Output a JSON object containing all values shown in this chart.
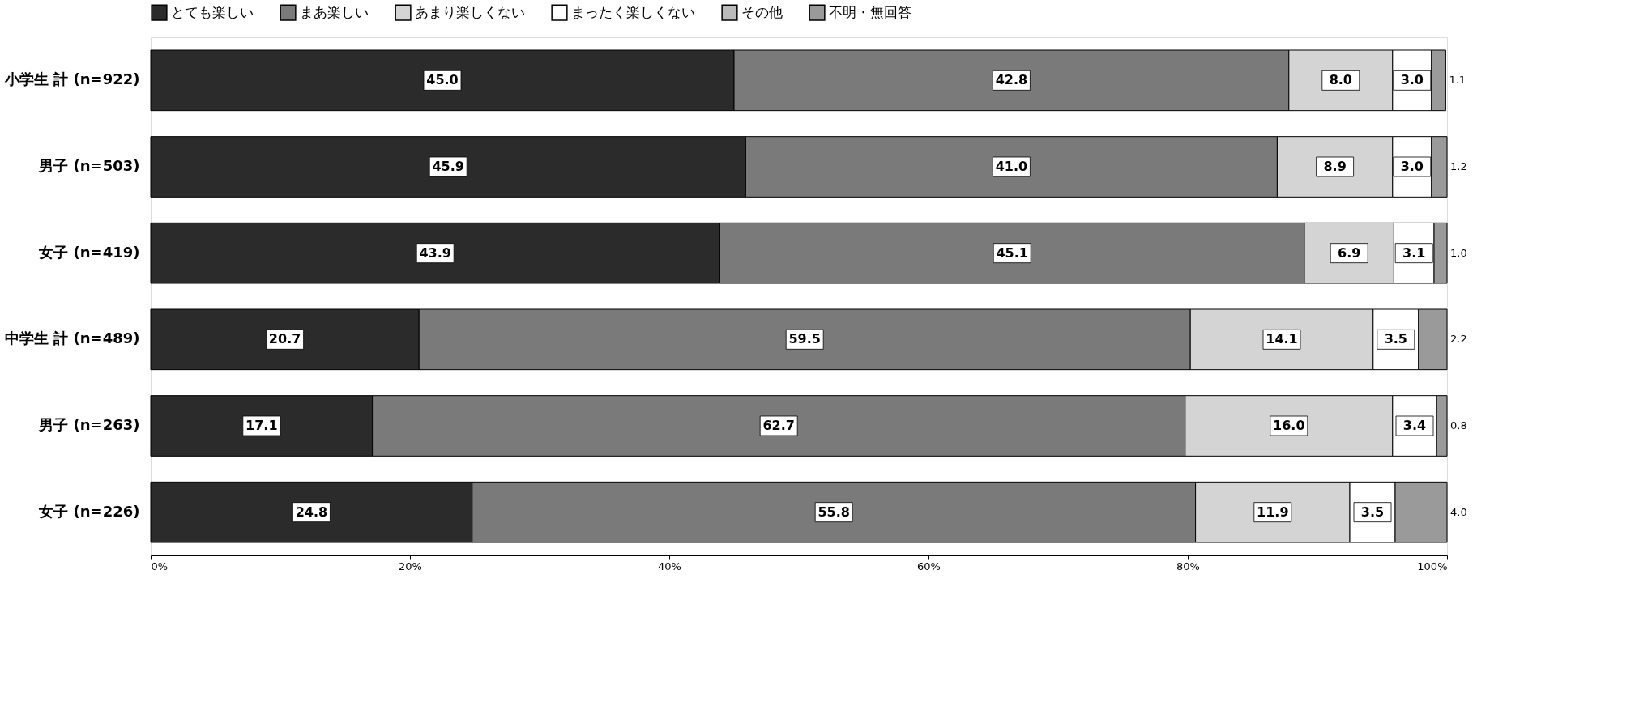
{
  "chart_data": {
    "type": "bar",
    "orientation": "horizontal",
    "stacked": true,
    "categories": [
      "小学生 計 (n=922)",
      "男子 (n=503)",
      "女子 (n=419)",
      "中学生 計 (n=489)",
      "男子 (n=263)",
      "女子 (n=226)"
    ],
    "series": [
      {
        "name": "とても楽しい",
        "color": "#2b2b2b",
        "values": [
          45.0,
          45.9,
          43.9,
          20.7,
          17.1,
          24.8
        ],
        "value_labels": [
          "45.0",
          "45.9",
          "43.9",
          "20.7",
          "17.1",
          "24.8"
        ]
      },
      {
        "name": "まあ楽しい",
        "color": "#7a7a7a",
        "values": [
          42.8,
          41.0,
          45.1,
          59.5,
          62.7,
          55.8
        ],
        "value_labels": [
          "42.8",
          "41.0",
          "45.1",
          "59.5",
          "62.7",
          "55.8"
        ]
      },
      {
        "name": "あまり楽しくない",
        "color": "#d4d4d4",
        "values": [
          8.0,
          8.9,
          6.9,
          14.1,
          16.0,
          11.9
        ],
        "value_labels": [
          "8.0",
          "8.9",
          "6.9",
          "14.1",
          "16.0",
          "11.9"
        ]
      },
      {
        "name": "まったく楽しくない",
        "color": "#ffffff",
        "values": [
          3.0,
          3.0,
          3.1,
          3.5,
          3.4,
          3.5
        ],
        "value_labels": [
          "3.0",
          "3.0",
          "3.1",
          "3.5",
          "3.4",
          "3.5"
        ]
      },
      {
        "name": "その他",
        "color": "#bbbbbb",
        "values": [
          null,
          null,
          null,
          null,
          null,
          null
        ]
      },
      {
        "name": "不明・無回答",
        "color": "#9a9a9a",
        "values": [
          1.1,
          1.2,
          1.0,
          2.2,
          0.8,
          4.0
        ],
        "value_labels": [
          "1.1",
          "1.2",
          "1.0",
          "2.2",
          "0.8",
          "4.0"
        ]
      }
    ],
    "xlim": [
      0,
      100
    ],
    "xticks": [
      {
        "value": 0,
        "label": "0%"
      },
      {
        "value": 20,
        "label": "20%"
      },
      {
        "value": 40,
        "label": "40%"
      },
      {
        "value": 60,
        "label": "60%"
      },
      {
        "value": 80,
        "label": "80%"
      },
      {
        "value": 100,
        "label": "100%"
      }
    ],
    "grid": false,
    "legend": "top"
  }
}
